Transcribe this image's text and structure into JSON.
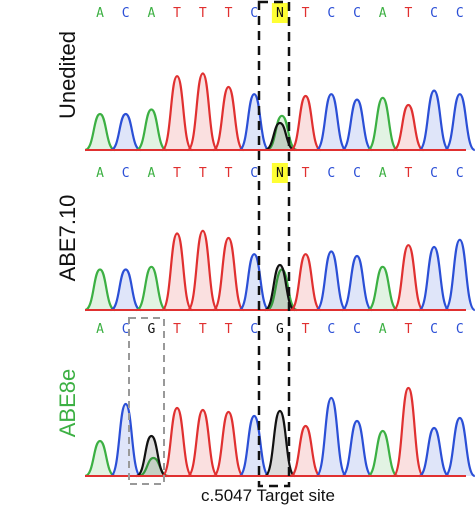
{
  "colors": {
    "A": "#3cb043",
    "C": "#2b4fd6",
    "G": "#111111",
    "T": "#e03030",
    "N": "#111111",
    "highlight": "#ffff33",
    "unedited_label": "#111111",
    "abe710_label": "#111111",
    "abe8e_label": "#3cb043",
    "target_box": "#111111",
    "bystander_box": "#999999",
    "baseline": "#e03030"
  },
  "rows": [
    {
      "id": "unedited",
      "label": "Unedited",
      "bases": [
        "A",
        "C",
        "A",
        "T",
        "T",
        "T",
        "C",
        "N",
        "T",
        "C",
        "C",
        "A",
        "T",
        "C",
        "C"
      ],
      "highlight_index": 7,
      "peaks": [
        {
          "base": "A",
          "h": 0.4
        },
        {
          "base": "C",
          "h": 0.4
        },
        {
          "base": "A",
          "h": 0.45
        },
        {
          "base": "T",
          "h": 0.82
        },
        {
          "base": "T",
          "h": 0.85
        },
        {
          "base": "T",
          "h": 0.7
        },
        {
          "base": "C",
          "h": 0.62
        },
        {
          "base": "G",
          "h": 0.3,
          "extra": {
            "base": "A",
            "h": 0.38
          }
        },
        {
          "base": "T",
          "h": 0.6
        },
        {
          "base": "C",
          "h": 0.62
        },
        {
          "base": "C",
          "h": 0.56
        },
        {
          "base": "A",
          "h": 0.58
        },
        {
          "base": "T",
          "h": 0.5
        },
        {
          "base": "C",
          "h": 0.66
        },
        {
          "base": "C",
          "h": 0.62
        }
      ]
    },
    {
      "id": "abe710",
      "label": "ABE7.10",
      "bases": [
        "A",
        "C",
        "A",
        "T",
        "T",
        "T",
        "C",
        "N",
        "T",
        "C",
        "C",
        "A",
        "T",
        "C",
        "C"
      ],
      "highlight_index": 7,
      "peaks": [
        {
          "base": "A",
          "h": 0.45
        },
        {
          "base": "C",
          "h": 0.45
        },
        {
          "base": "A",
          "h": 0.48
        },
        {
          "base": "T",
          "h": 0.85
        },
        {
          "base": "T",
          "h": 0.88
        },
        {
          "base": "T",
          "h": 0.8
        },
        {
          "base": "C",
          "h": 0.62
        },
        {
          "base": "G",
          "h": 0.5,
          "extra": {
            "base": "A",
            "h": 0.45
          }
        },
        {
          "base": "T",
          "h": 0.62
        },
        {
          "base": "C",
          "h": 0.65
        },
        {
          "base": "C",
          "h": 0.6
        },
        {
          "base": "A",
          "h": 0.48
        },
        {
          "base": "T",
          "h": 0.72
        },
        {
          "base": "C",
          "h": 0.7
        },
        {
          "base": "C",
          "h": 0.78
        }
      ]
    },
    {
      "id": "abe8e",
      "label": "ABE8e",
      "bases": [
        "A",
        "C",
        "G",
        "T",
        "T",
        "T",
        "C",
        "G",
        "T",
        "C",
        "C",
        "A",
        "T",
        "C",
        "C"
      ],
      "highlight_index": -1,
      "peaks": [
        {
          "base": "A",
          "h": 0.35
        },
        {
          "base": "C",
          "h": 0.72
        },
        {
          "base": "G",
          "h": 0.4,
          "extra": {
            "base": "A",
            "h": 0.18
          }
        },
        {
          "base": "T",
          "h": 0.68
        },
        {
          "base": "T",
          "h": 0.66
        },
        {
          "base": "T",
          "h": 0.64
        },
        {
          "base": "C",
          "h": 0.6
        },
        {
          "base": "G",
          "h": 0.65
        },
        {
          "base": "T",
          "h": 0.5
        },
        {
          "base": "C",
          "h": 0.78
        },
        {
          "base": "C",
          "h": 0.55
        },
        {
          "base": "A",
          "h": 0.45
        },
        {
          "base": "T",
          "h": 0.88
        },
        {
          "base": "C",
          "h": 0.48
        },
        {
          "base": "C",
          "h": 0.58
        }
      ]
    }
  ],
  "caption": "c.5047 Target site"
}
